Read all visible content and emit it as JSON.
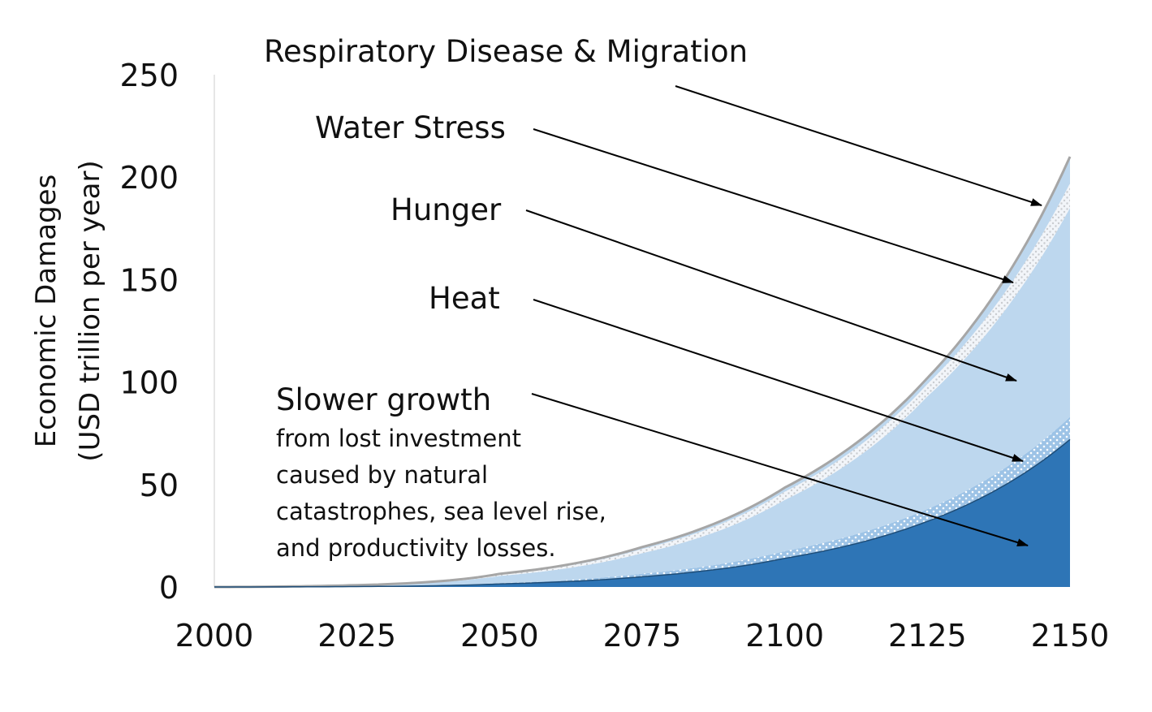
{
  "chart_data": {
    "type": "area",
    "title": "",
    "xlabel": "",
    "ylabel_line1": "Economic Damages",
    "ylabel_line2": "(USD trillion per year)",
    "xlim": [
      2000,
      2150
    ],
    "ylim": [
      0,
      250
    ],
    "x_ticks": [
      "2000",
      "2025",
      "2050",
      "2075",
      "2100",
      "2125",
      "2150"
    ],
    "y_ticks": [
      "0",
      "50",
      "100",
      "150",
      "200",
      "250"
    ],
    "x": [
      2000,
      2025,
      2050,
      2075,
      2100,
      2125,
      2150
    ],
    "series": [
      {
        "name": "Slower growth",
        "color": "#2e75b6",
        "values": [
          0,
          0.2,
          1.5,
          5,
          14,
          32,
          72
        ]
      },
      {
        "name": "Heat",
        "color": "#9dc3e6",
        "values": [
          0,
          0.05,
          0.4,
          1.5,
          3.5,
          6,
          11
        ]
      },
      {
        "name": "Hunger",
        "color": "#bdd7ee",
        "values": [
          0,
          0.5,
          3.5,
          10,
          25,
          55,
          102
        ]
      },
      {
        "name": "Water Stress",
        "color": "#e8eef5",
        "values": [
          0,
          0.1,
          0.7,
          2,
          4,
          6,
          12
        ]
      },
      {
        "name": "Respiratory Disease & Migration",
        "color": "#bdd7ee",
        "values": [
          0,
          0.05,
          0.3,
          1,
          2,
          3,
          13
        ]
      }
    ],
    "annotations": {
      "respiratory": "Respiratory Disease & Migration",
      "water": "Water Stress",
      "hunger": "Hunger",
      "heat": "Heat",
      "slower": "Slower growth",
      "slower_detail": [
        "from lost investment",
        "caused by natural",
        "catastrophes, sea level rise,",
        "and productivity losses."
      ]
    },
    "grid": false,
    "legend": "none"
  }
}
